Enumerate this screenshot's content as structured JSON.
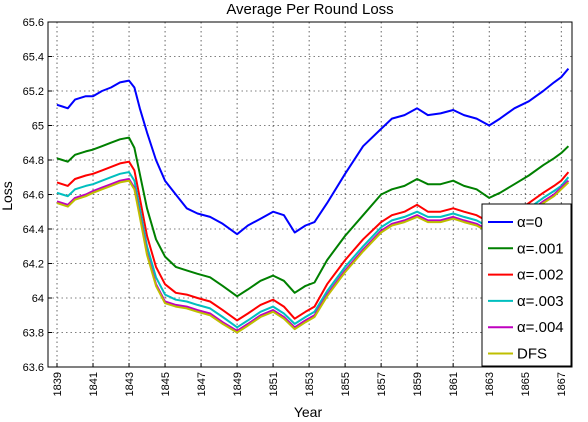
{
  "chart_data": {
    "type": "line",
    "title": "Average Per Round Loss",
    "xlabel": "Year",
    "ylabel": "Loss",
    "xlim": [
      1838.5,
      1867.6
    ],
    "ylim": [
      63.6,
      65.6
    ],
    "x_ticks": [
      1839,
      1841,
      1843,
      1845,
      1847,
      1849,
      1851,
      1853,
      1855,
      1857,
      1859,
      1861,
      1863,
      1865,
      1867
    ],
    "y_ticks": [
      63.6,
      63.8,
      64,
      64.2,
      64.4,
      64.6,
      64.8,
      65,
      65.2,
      65.4,
      65.6
    ],
    "y_tick_labels": [
      "63.6",
      "63.8",
      "64",
      "64.2",
      "64.4",
      "64.6",
      "64.8",
      "65",
      "65.2",
      "65.4",
      "65.6"
    ],
    "grid": true,
    "legend_position": "bottom-right",
    "series": [
      {
        "name": "α=0",
        "color": "#0000ff",
        "points": [
          [
            1839,
            65.12
          ],
          [
            1839.3,
            65.11
          ],
          [
            1839.6,
            65.1
          ],
          [
            1840,
            65.15
          ],
          [
            1840.6,
            65.17
          ],
          [
            1841,
            65.17
          ],
          [
            1841.5,
            65.2
          ],
          [
            1842,
            65.22
          ],
          [
            1842.5,
            65.25
          ],
          [
            1843,
            65.26
          ],
          [
            1843.3,
            65.22
          ],
          [
            1843.6,
            65.1
          ],
          [
            1844,
            64.96
          ],
          [
            1844.5,
            64.8
          ],
          [
            1845,
            64.68
          ],
          [
            1845.6,
            64.6
          ],
          [
            1846.2,
            64.52
          ],
          [
            1846.8,
            64.49
          ],
          [
            1847.5,
            64.47
          ],
          [
            1848.2,
            64.43
          ],
          [
            1849,
            64.37
          ],
          [
            1849.6,
            64.42
          ],
          [
            1850.3,
            64.46
          ],
          [
            1851,
            64.5
          ],
          [
            1851.6,
            64.48
          ],
          [
            1852.2,
            64.38
          ],
          [
            1852.8,
            64.42
          ],
          [
            1853.3,
            64.44
          ],
          [
            1854,
            64.55
          ],
          [
            1855,
            64.72
          ],
          [
            1856,
            64.88
          ],
          [
            1857,
            64.98
          ],
          [
            1857.6,
            65.04
          ],
          [
            1858.3,
            65.06
          ],
          [
            1859,
            65.1
          ],
          [
            1859.6,
            65.06
          ],
          [
            1860.3,
            65.07
          ],
          [
            1861,
            65.09
          ],
          [
            1861.6,
            65.06
          ],
          [
            1862.3,
            65.04
          ],
          [
            1863,
            65.0
          ],
          [
            1863.6,
            65.04
          ],
          [
            1864.4,
            65.1
          ],
          [
            1865.2,
            65.14
          ],
          [
            1866,
            65.2
          ],
          [
            1866.6,
            65.25
          ],
          [
            1867,
            65.28
          ],
          [
            1867.4,
            65.33
          ]
        ]
      },
      {
        "name": "α=.001",
        "color": "#008000",
        "points": [
          [
            1839,
            64.81
          ],
          [
            1839.3,
            64.8
          ],
          [
            1839.6,
            64.79
          ],
          [
            1840,
            64.83
          ],
          [
            1840.6,
            64.85
          ],
          [
            1841,
            64.86
          ],
          [
            1841.5,
            64.88
          ],
          [
            1842,
            64.9
          ],
          [
            1842.5,
            64.92
          ],
          [
            1843,
            64.93
          ],
          [
            1843.3,
            64.87
          ],
          [
            1843.6,
            64.72
          ],
          [
            1844,
            64.52
          ],
          [
            1844.5,
            64.34
          ],
          [
            1845,
            64.24
          ],
          [
            1845.6,
            64.18
          ],
          [
            1846.2,
            64.16
          ],
          [
            1846.8,
            64.14
          ],
          [
            1847.5,
            64.12
          ],
          [
            1848.2,
            64.07
          ],
          [
            1849,
            64.01
          ],
          [
            1849.6,
            64.05
          ],
          [
            1850.3,
            64.1
          ],
          [
            1851,
            64.13
          ],
          [
            1851.6,
            64.1
          ],
          [
            1852.2,
            64.03
          ],
          [
            1852.8,
            64.07
          ],
          [
            1853.3,
            64.09
          ],
          [
            1854,
            64.22
          ],
          [
            1855,
            64.36
          ],
          [
            1856,
            64.48
          ],
          [
            1857,
            64.6
          ],
          [
            1857.6,
            64.63
          ],
          [
            1858.3,
            64.65
          ],
          [
            1859,
            64.69
          ],
          [
            1859.6,
            64.66
          ],
          [
            1860.3,
            64.66
          ],
          [
            1861,
            64.68
          ],
          [
            1861.6,
            64.65
          ],
          [
            1862.3,
            64.63
          ],
          [
            1863,
            64.58
          ],
          [
            1863.6,
            64.61
          ],
          [
            1864.4,
            64.66
          ],
          [
            1865.2,
            64.71
          ],
          [
            1866,
            64.77
          ],
          [
            1866.6,
            64.81
          ],
          [
            1867,
            64.84
          ],
          [
            1867.4,
            64.88
          ]
        ]
      },
      {
        "name": "α=.002",
        "color": "#ff0000",
        "points": [
          [
            1839,
            64.67
          ],
          [
            1839.3,
            64.66
          ],
          [
            1839.6,
            64.65
          ],
          [
            1840,
            64.69
          ],
          [
            1840.6,
            64.71
          ],
          [
            1841,
            64.72
          ],
          [
            1841.5,
            64.74
          ],
          [
            1842,
            64.76
          ],
          [
            1842.5,
            64.78
          ],
          [
            1843,
            64.79
          ],
          [
            1843.3,
            64.74
          ],
          [
            1843.6,
            64.58
          ],
          [
            1844,
            64.36
          ],
          [
            1844.5,
            64.18
          ],
          [
            1845,
            64.08
          ],
          [
            1845.6,
            64.03
          ],
          [
            1846.2,
            64.02
          ],
          [
            1846.8,
            64.0
          ],
          [
            1847.5,
            63.98
          ],
          [
            1848.2,
            63.93
          ],
          [
            1849,
            63.87
          ],
          [
            1849.6,
            63.91
          ],
          [
            1850.3,
            63.96
          ],
          [
            1851,
            63.99
          ],
          [
            1851.6,
            63.95
          ],
          [
            1852.2,
            63.88
          ],
          [
            1852.8,
            63.92
          ],
          [
            1853.3,
            63.95
          ],
          [
            1854,
            64.08
          ],
          [
            1855,
            64.22
          ],
          [
            1856,
            64.34
          ],
          [
            1857,
            64.44
          ],
          [
            1857.6,
            64.48
          ],
          [
            1858.3,
            64.5
          ],
          [
            1859,
            64.54
          ],
          [
            1859.6,
            64.5
          ],
          [
            1860.3,
            64.5
          ],
          [
            1861,
            64.52
          ],
          [
            1861.6,
            64.5
          ],
          [
            1862.3,
            64.48
          ],
          [
            1863,
            64.44
          ],
          [
            1863.6,
            64.46
          ],
          [
            1864.4,
            64.5
          ],
          [
            1865.2,
            64.55
          ],
          [
            1866,
            64.61
          ],
          [
            1866.6,
            64.65
          ],
          [
            1867,
            64.68
          ],
          [
            1867.4,
            64.73
          ]
        ]
      },
      {
        "name": "α=.003",
        "color": "#00bfbf",
        "points": [
          [
            1839,
            64.61
          ],
          [
            1839.3,
            64.6
          ],
          [
            1839.6,
            64.59
          ],
          [
            1840,
            64.63
          ],
          [
            1840.6,
            64.65
          ],
          [
            1841,
            64.66
          ],
          [
            1841.5,
            64.68
          ],
          [
            1842,
            64.7
          ],
          [
            1842.5,
            64.72
          ],
          [
            1843,
            64.73
          ],
          [
            1843.3,
            64.68
          ],
          [
            1843.6,
            64.52
          ],
          [
            1844,
            64.3
          ],
          [
            1844.5,
            64.12
          ],
          [
            1845,
            64.02
          ],
          [
            1845.6,
            63.99
          ],
          [
            1846.2,
            63.98
          ],
          [
            1846.8,
            63.96
          ],
          [
            1847.5,
            63.94
          ],
          [
            1848.2,
            63.89
          ],
          [
            1849,
            63.83
          ],
          [
            1849.6,
            63.87
          ],
          [
            1850.3,
            63.92
          ],
          [
            1851,
            63.95
          ],
          [
            1851.6,
            63.91
          ],
          [
            1852.2,
            63.85
          ],
          [
            1852.8,
            63.89
          ],
          [
            1853.3,
            63.92
          ],
          [
            1854,
            64.04
          ],
          [
            1855,
            64.18
          ],
          [
            1856,
            64.3
          ],
          [
            1857,
            64.41
          ],
          [
            1857.6,
            64.45
          ],
          [
            1858.3,
            64.47
          ],
          [
            1859,
            64.5
          ],
          [
            1859.6,
            64.47
          ],
          [
            1860.3,
            64.47
          ],
          [
            1861,
            64.49
          ],
          [
            1861.6,
            64.47
          ],
          [
            1862.3,
            64.45
          ],
          [
            1863,
            64.41
          ],
          [
            1863.6,
            64.43
          ],
          [
            1864.4,
            64.47
          ],
          [
            1865.2,
            64.52
          ],
          [
            1866,
            64.58
          ],
          [
            1866.6,
            64.62
          ],
          [
            1867,
            64.65
          ],
          [
            1867.4,
            64.7
          ]
        ]
      },
      {
        "name": "α=.004",
        "color": "#bf00bf",
        "points": [
          [
            1839,
            64.56
          ],
          [
            1839.3,
            64.55
          ],
          [
            1839.6,
            64.54
          ],
          [
            1840,
            64.58
          ],
          [
            1840.6,
            64.6
          ],
          [
            1841,
            64.62
          ],
          [
            1841.5,
            64.64
          ],
          [
            1842,
            64.66
          ],
          [
            1842.5,
            64.68
          ],
          [
            1843,
            64.69
          ],
          [
            1843.3,
            64.64
          ],
          [
            1843.6,
            64.48
          ],
          [
            1844,
            64.26
          ],
          [
            1844.5,
            64.08
          ],
          [
            1845,
            63.98
          ],
          [
            1845.6,
            63.96
          ],
          [
            1846.2,
            63.95
          ],
          [
            1846.8,
            63.93
          ],
          [
            1847.5,
            63.91
          ],
          [
            1848.2,
            63.86
          ],
          [
            1849,
            63.81
          ],
          [
            1849.6,
            63.85
          ],
          [
            1850.3,
            63.9
          ],
          [
            1851,
            63.93
          ],
          [
            1851.6,
            63.89
          ],
          [
            1852.2,
            63.83
          ],
          [
            1852.8,
            63.87
          ],
          [
            1853.3,
            63.9
          ],
          [
            1854,
            64.02
          ],
          [
            1855,
            64.16
          ],
          [
            1856,
            64.28
          ],
          [
            1857,
            64.39
          ],
          [
            1857.6,
            64.43
          ],
          [
            1858.3,
            64.45
          ],
          [
            1859,
            64.48
          ],
          [
            1859.6,
            64.45
          ],
          [
            1860.3,
            64.45
          ],
          [
            1861,
            64.47
          ],
          [
            1861.6,
            64.45
          ],
          [
            1862.3,
            64.43
          ],
          [
            1863,
            64.39
          ],
          [
            1863.6,
            64.41
          ],
          [
            1864.4,
            64.45
          ],
          [
            1865.2,
            64.5
          ],
          [
            1866,
            64.56
          ],
          [
            1866.6,
            64.6
          ],
          [
            1867,
            64.64
          ],
          [
            1867.4,
            64.68
          ]
        ]
      },
      {
        "name": "DFS",
        "color": "#bfbf00",
        "points": [
          [
            1839,
            64.55
          ],
          [
            1839.3,
            64.54
          ],
          [
            1839.6,
            64.53
          ],
          [
            1840,
            64.57
          ],
          [
            1840.6,
            64.59
          ],
          [
            1841,
            64.61
          ],
          [
            1841.5,
            64.63
          ],
          [
            1842,
            64.65
          ],
          [
            1842.5,
            64.67
          ],
          [
            1843,
            64.68
          ],
          [
            1843.3,
            64.63
          ],
          [
            1843.6,
            64.47
          ],
          [
            1844,
            64.25
          ],
          [
            1844.5,
            64.07
          ],
          [
            1845,
            63.97
          ],
          [
            1845.6,
            63.95
          ],
          [
            1846.2,
            63.94
          ],
          [
            1846.8,
            63.92
          ],
          [
            1847.5,
            63.9
          ],
          [
            1848.2,
            63.85
          ],
          [
            1849,
            63.8
          ],
          [
            1849.6,
            63.84
          ],
          [
            1850.3,
            63.89
          ],
          [
            1851,
            63.92
          ],
          [
            1851.6,
            63.88
          ],
          [
            1852.2,
            63.82
          ],
          [
            1852.8,
            63.86
          ],
          [
            1853.3,
            63.89
          ],
          [
            1854,
            64.01
          ],
          [
            1855,
            64.15
          ],
          [
            1856,
            64.27
          ],
          [
            1857,
            64.38
          ],
          [
            1857.6,
            64.42
          ],
          [
            1858.3,
            64.44
          ],
          [
            1859,
            64.47
          ],
          [
            1859.6,
            64.44
          ],
          [
            1860.3,
            64.44
          ],
          [
            1861,
            64.46
          ],
          [
            1861.6,
            64.44
          ],
          [
            1862.3,
            64.42
          ],
          [
            1863,
            64.38
          ],
          [
            1863.6,
            64.4
          ],
          [
            1864.4,
            64.44
          ],
          [
            1865.2,
            64.49
          ],
          [
            1866,
            64.55
          ],
          [
            1866.6,
            64.59
          ],
          [
            1867,
            64.63
          ],
          [
            1867.4,
            64.67
          ]
        ]
      }
    ]
  }
}
